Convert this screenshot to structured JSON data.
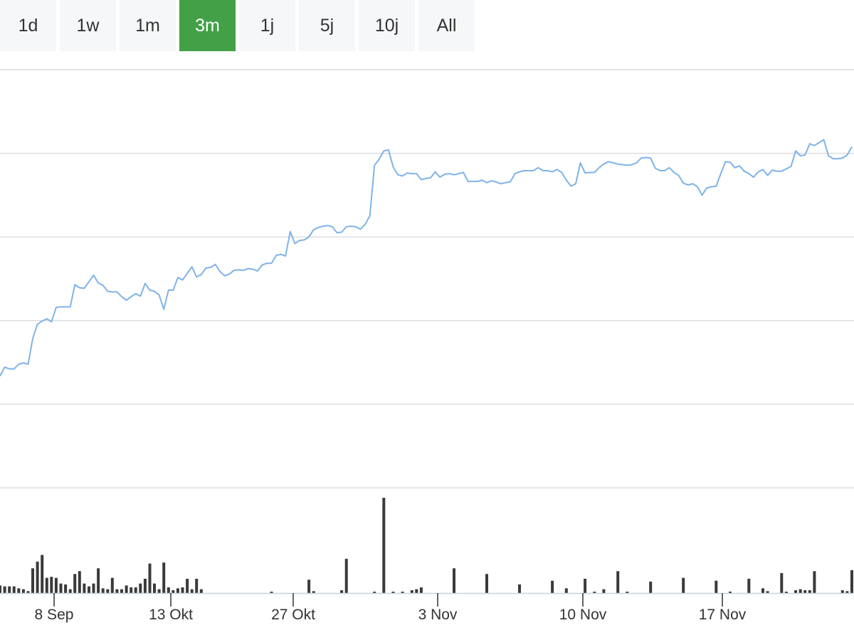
{
  "ranges": {
    "items": [
      {
        "label": "1d"
      },
      {
        "label": "1w"
      },
      {
        "label": "1m"
      },
      {
        "label": "3m"
      },
      {
        "label": "1j"
      },
      {
        "label": "5j"
      },
      {
        "label": "10j"
      },
      {
        "label": "All"
      }
    ],
    "active_index": 3
  },
  "colors": {
    "price_line": "#7fb3e8",
    "volume_bar": "#3a3a3a",
    "grid": "#dddddd",
    "active_range": "#43a047"
  },
  "chart_data": {
    "type": "line",
    "title": "",
    "xlabel": "",
    "ylabel": "",
    "grid": true,
    "x_ticks": [
      "8 Sep",
      "13 Okt",
      "27 Okt",
      "3 Nov",
      "10 Nov",
      "17 Nov"
    ],
    "price": {
      "values": [
        18.7,
        20.2,
        19.9,
        19.9,
        20.7,
        20.9,
        20.7,
        25.0,
        27.4,
        27.9,
        28.3,
        27.8,
        30.2,
        30.3,
        30.3,
        30.3,
        34.0,
        33.5,
        33.4,
        34.5,
        35.6,
        34.3,
        33.9,
        32.9,
        32.8,
        32.8,
        32.0,
        31.4,
        32.0,
        32.5,
        32.1,
        34.2,
        33.1,
        32.9,
        32.3,
        29.9,
        33.1,
        33.1,
        35.2,
        34.8,
        35.9,
        37.0,
        35.3,
        35.7,
        36.8,
        36.9,
        37.4,
        36.2,
        35.5,
        35.8,
        36.4,
        36.5,
        36.4,
        36.7,
        36.6,
        36.3,
        37.3,
        37.6,
        37.6,
        38.9,
        39.1,
        38.8,
        42.9,
        40.9,
        41.4,
        41.5,
        42.0,
        43.2,
        43.6,
        43.8,
        43.9,
        43.7,
        42.7,
        42.8,
        43.7,
        43.8,
        43.7,
        43.3,
        44.1,
        45.5,
        54.0,
        55.0,
        56.4,
        56.6,
        53.7,
        52.4,
        52.2,
        52.7,
        52.6,
        52.6,
        51.6,
        51.8,
        51.9,
        52.9,
        52.0,
        52.5,
        52.6,
        52.4,
        52.6,
        52.8,
        51.3,
        51.3,
        51.3,
        51.5,
        51.1,
        51.4,
        51.2,
        50.9,
        51.1,
        51.2,
        52.6,
        52.9,
        53.1,
        53.1,
        53.1,
        53.6,
        53.1,
        53.1,
        52.9,
        53.3,
        52.8,
        51.5,
        50.5,
        50.9,
        54.4,
        52.7,
        52.8,
        52.8,
        53.6,
        54.2,
        54.6,
        54.4,
        54.2,
        54.1,
        54.0,
        54.1,
        54.4,
        55.2,
        55.3,
        55.2,
        53.5,
        53.1,
        53.1,
        53.6,
        52.8,
        52.3,
        51.0,
        50.7,
        50.9,
        50.4,
        49.0,
        50.2,
        50.4,
        50.5,
        52.6,
        54.6,
        54.5,
        53.6,
        53.9,
        53.0,
        52.6,
        52.0,
        52.9,
        53.3,
        52.3,
        53.2,
        53.0,
        53.0,
        53.4,
        53.8,
        56.4,
        55.6,
        55.7,
        57.6,
        57.3,
        57.8,
        58.3,
        55.6,
        55.1,
        55.1,
        55.2,
        55.7,
        57.1
      ],
      "ylim": [
        0,
        70
      ]
    },
    "volume": {
      "values": [
        8,
        7,
        7,
        7,
        5,
        4,
        2,
        26,
        33,
        40,
        16,
        17,
        16,
        10,
        9,
        4,
        20,
        23,
        10,
        7,
        10,
        26,
        5,
        4,
        16,
        4,
        4,
        8,
        6,
        6,
        10,
        15,
        31,
        10,
        4,
        32,
        6,
        3,
        5,
        6,
        15,
        4,
        15,
        4,
        0,
        0,
        0,
        0,
        0,
        0,
        0,
        0,
        0,
        0,
        0,
        0,
        0,
        0,
        1,
        0,
        0,
        0,
        0,
        0,
        0,
        0,
        14,
        2,
        0,
        0,
        0,
        0,
        0,
        3,
        0,
        0,
        0,
        0,
        0,
        0,
        0,
        0,
        0,
        0,
        0,
        0,
        0,
        0,
        0,
        0,
        0,
        0,
        0,
        0,
        0,
        0,
        0,
        0,
        0,
        0,
        0,
        0,
        0,
        0,
        0,
        0,
        0,
        0,
        0,
        0,
        0,
        0,
        0,
        0,
        0,
        0,
        0,
        0,
        0,
        0,
        0,
        0,
        0,
        0,
        0,
        0,
        0,
        0,
        0,
        0,
        0,
        0,
        0,
        0,
        0,
        0,
        0,
        0,
        0,
        0,
        0,
        0,
        0,
        0,
        0,
        0,
        0,
        0,
        0,
        0,
        0,
        0,
        0,
        0,
        0,
        0,
        0,
        0,
        0,
        0,
        0,
        0,
        0,
        0,
        0,
        0,
        0,
        0,
        0,
        0,
        0,
        0,
        0,
        0,
        0,
        0,
        0,
        0,
        0,
        0,
        0,
        0,
        0,
        0,
        0,
        0,
        0,
        0,
        0,
        0,
        0,
        0,
        0,
        0,
        0,
        0,
        0,
        0,
        0,
        0,
        0
      ],
      "sparse": [
        {
          "day": 74,
          "value": 36
        },
        {
          "day": 80,
          "value": 1
        },
        {
          "day": 82,
          "value": 100
        },
        {
          "day": 84,
          "value": 1
        },
        {
          "day": 86,
          "value": 1
        },
        {
          "day": 88,
          "value": 3
        },
        {
          "day": 89,
          "value": 4
        },
        {
          "day": 90,
          "value": 6
        },
        {
          "day": 97,
          "value": 26
        },
        {
          "day": 104,
          "value": 20
        },
        {
          "day": 111,
          "value": 9
        },
        {
          "day": 118,
          "value": 13
        },
        {
          "day": 121,
          "value": 5
        },
        {
          "day": 125,
          "value": 15
        },
        {
          "day": 127,
          "value": 1
        },
        {
          "day": 129,
          "value": 4
        },
        {
          "day": 132,
          "value": 23
        },
        {
          "day": 134,
          "value": 1
        },
        {
          "day": 139,
          "value": 12
        },
        {
          "day": 146,
          "value": 16
        },
        {
          "day": 153,
          "value": 13
        },
        {
          "day": 156,
          "value": 1
        },
        {
          "day": 160,
          "value": 15
        },
        {
          "day": 163,
          "value": 5
        },
        {
          "day": 164,
          "value": 2
        },
        {
          "day": 167,
          "value": 21
        },
        {
          "day": 168,
          "value": 1
        },
        {
          "day": 170,
          "value": 3
        },
        {
          "day": 171,
          "value": 4
        },
        {
          "day": 172,
          "value": 3
        },
        {
          "day": 173,
          "value": 3
        },
        {
          "day": 174,
          "value": 23
        },
        {
          "day": 180,
          "value": 3
        },
        {
          "day": 181,
          "value": 2
        },
        {
          "day": 182,
          "value": 24
        },
        {
          "day": 184,
          "value": 2
        },
        {
          "day": 185,
          "value": 3
        },
        {
          "day": 186,
          "value": 3
        },
        {
          "day": 187,
          "value": 4
        },
        {
          "day": 188,
          "value": 30
        },
        {
          "day": 189,
          "value": 3
        },
        {
          "day": 190,
          "value": 2
        },
        {
          "day": 191,
          "value": 5
        },
        {
          "day": 192,
          "value": 8
        },
        {
          "day": 193,
          "value": 11
        },
        {
          "day": 194,
          "value": 8
        },
        {
          "day": 196,
          "value": 2
        },
        {
          "day": 197,
          "value": 3
        },
        {
          "day": 198,
          "value": 2
        }
      ],
      "ylim": [
        0,
        100
      ]
    }
  }
}
